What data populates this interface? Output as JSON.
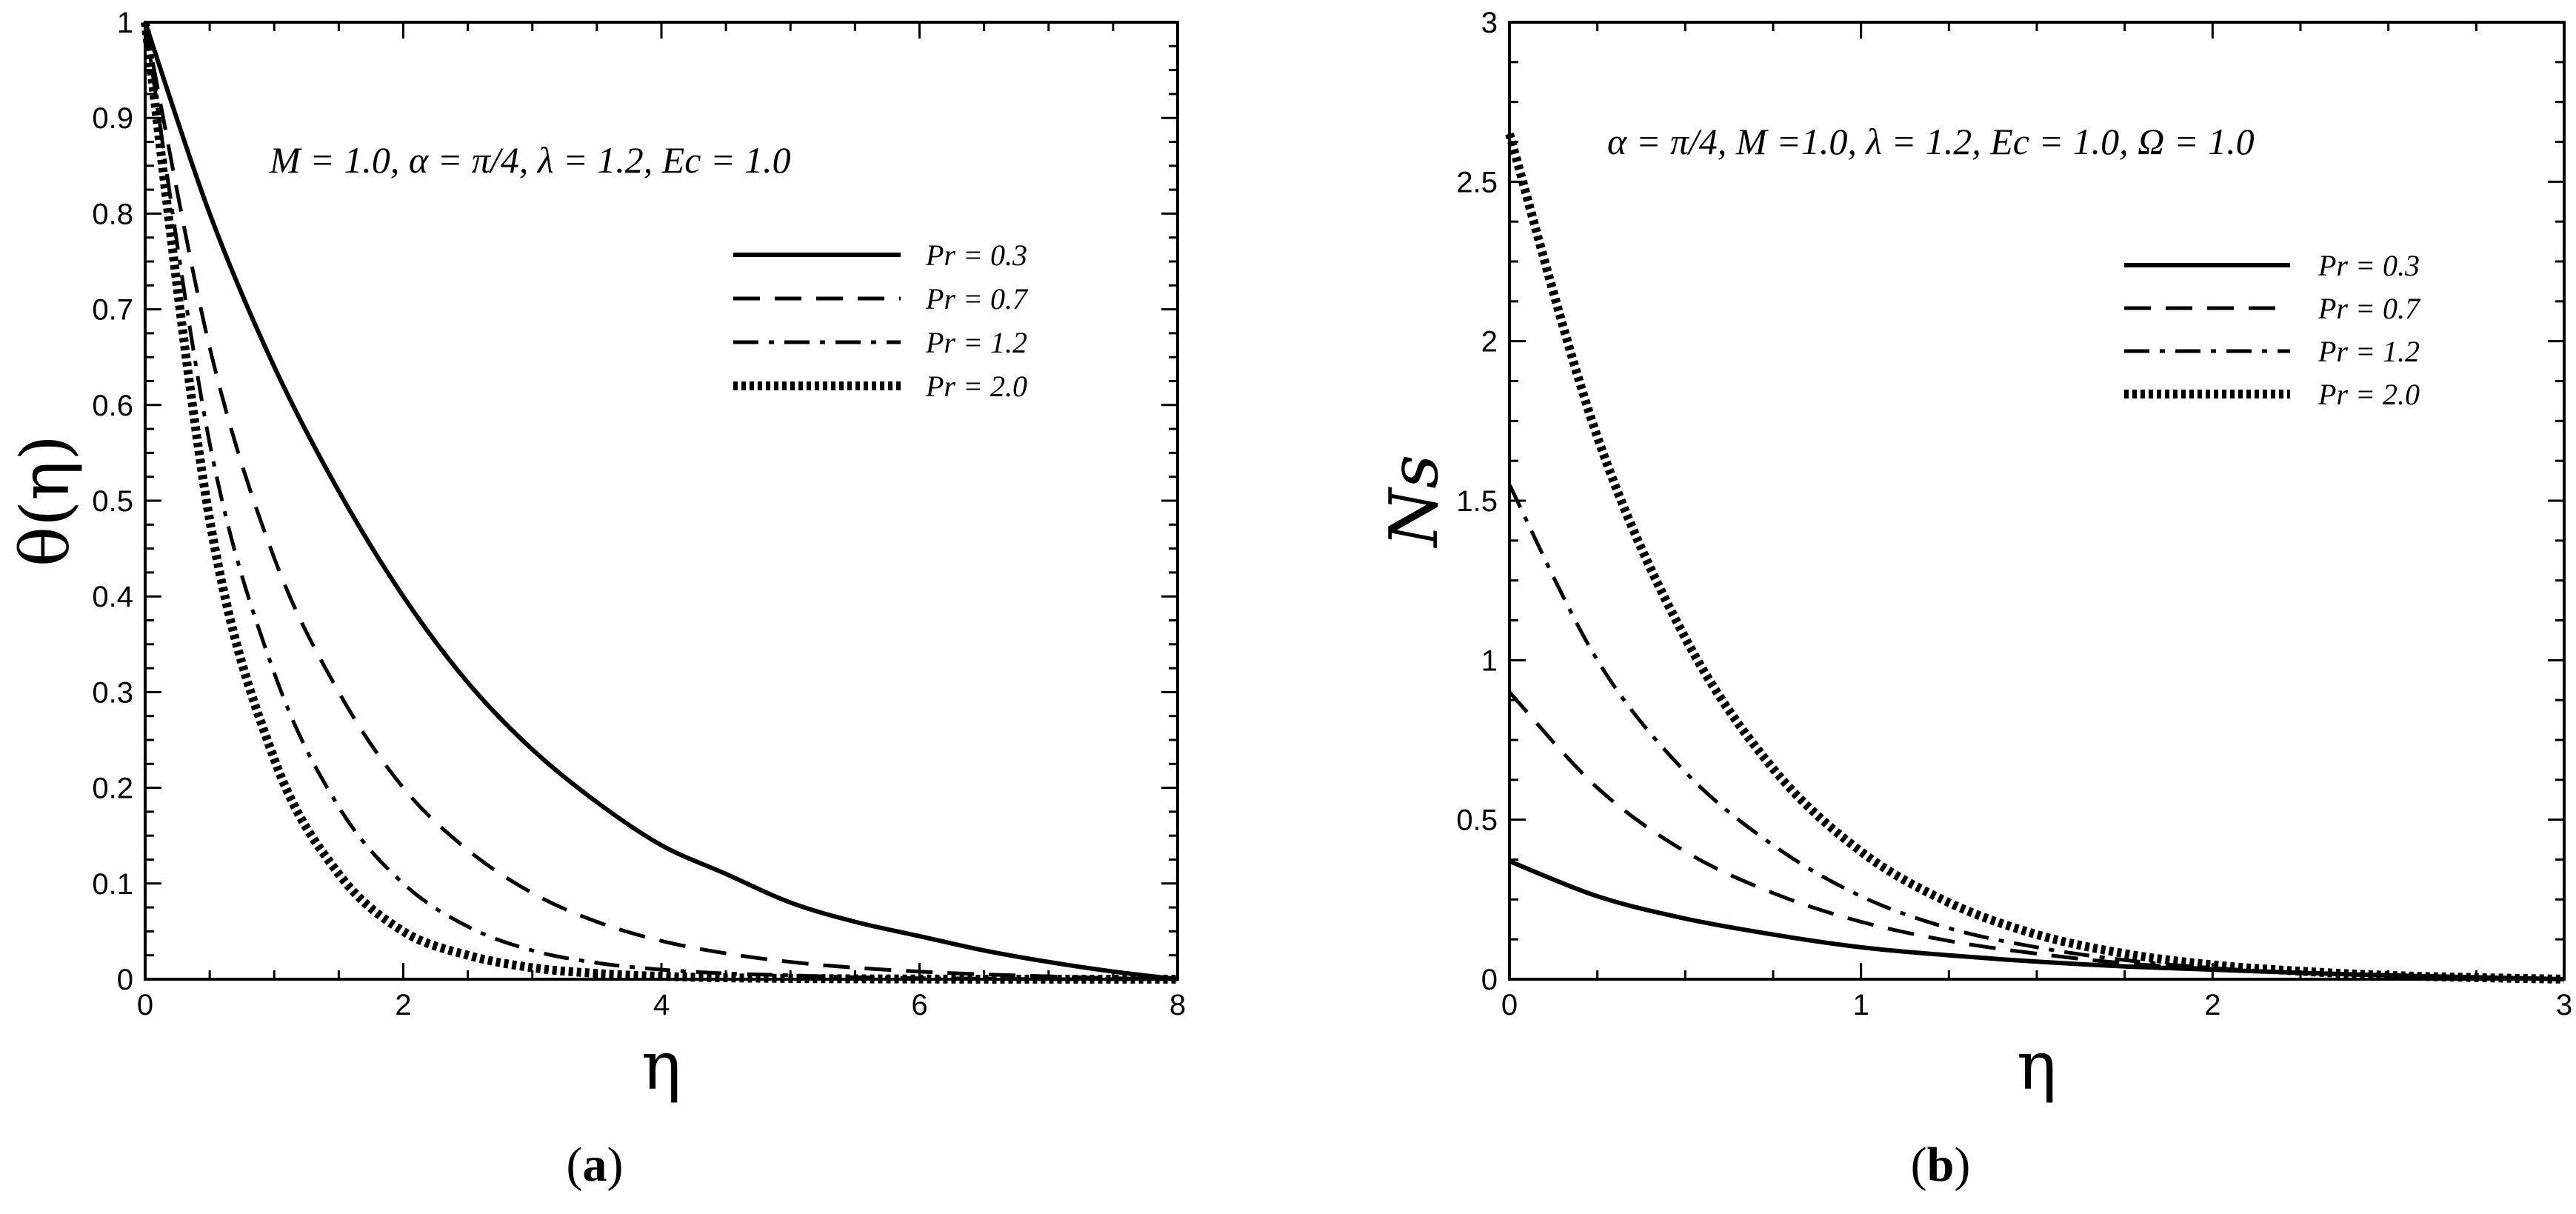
{
  "chart_data": [
    {
      "type": "line",
      "panel": "a",
      "caption": {
        "open": "(",
        "letter": "a",
        "close": ")"
      },
      "ylabel": "θ(η)",
      "xlabel": "η",
      "annotation": "M = 1.0, α = π/4, λ = 1.2, Ec = 1.0",
      "xlim": [
        0,
        8
      ],
      "ylim": [
        0,
        1
      ],
      "xticks": [
        0,
        2,
        4,
        6,
        8
      ],
      "yticks": [
        0,
        0.1,
        0.2,
        0.3,
        0.4,
        0.5,
        0.6,
        0.7,
        0.8,
        0.9,
        1
      ],
      "legend_position": "upper-right",
      "series": [
        {
          "name": "Pr = 0.3",
          "style": "solid",
          "x": [
            0,
            0.5,
            1,
            1.5,
            2,
            2.5,
            3,
            3.5,
            4,
            4.5,
            5,
            5.5,
            6,
            6.5,
            7,
            7.5,
            8
          ],
          "y": [
            1.0,
            0.8,
            0.64,
            0.51,
            0.4,
            0.31,
            0.24,
            0.185,
            0.14,
            0.11,
            0.08,
            0.06,
            0.045,
            0.03,
            0.018,
            0.008,
            0.0
          ]
        },
        {
          "name": "Pr = 0.7",
          "style": "dashed",
          "x": [
            0,
            0.5,
            1,
            1.5,
            2,
            2.5,
            3,
            3.5,
            4,
            4.5,
            5,
            5.5,
            6,
            6.5,
            7,
            7.5,
            8
          ],
          "y": [
            1.0,
            0.66,
            0.44,
            0.3,
            0.2,
            0.135,
            0.09,
            0.06,
            0.04,
            0.027,
            0.018,
            0.012,
            0.008,
            0.005,
            0.003,
            0.001,
            0.0
          ]
        },
        {
          "name": "Pr = 1.2",
          "style": "dashdot",
          "x": [
            0,
            0.5,
            1,
            1.5,
            2,
            2.5,
            3,
            3.5,
            4,
            4.5,
            5,
            5.5,
            6,
            6.5,
            7,
            7.5,
            8
          ],
          "y": [
            1.0,
            0.56,
            0.32,
            0.18,
            0.1,
            0.055,
            0.03,
            0.017,
            0.01,
            0.006,
            0.004,
            0.002,
            0.001,
            0.0005,
            0.0,
            0.0,
            0.0
          ]
        },
        {
          "name": "Pr = 2.0",
          "style": "dotted",
          "x": [
            0,
            0.5,
            1,
            1.5,
            2,
            2.5,
            3,
            3.5,
            4,
            4.5,
            5,
            5.5,
            6,
            6.5,
            7,
            7.5,
            8
          ],
          "y": [
            1.0,
            0.48,
            0.23,
            0.11,
            0.05,
            0.025,
            0.012,
            0.006,
            0.003,
            0.0015,
            0.0008,
            0.0004,
            0.0002,
            0.0,
            0.0,
            0.0,
            0.0
          ]
        }
      ]
    },
    {
      "type": "line",
      "panel": "b",
      "caption": {
        "open": "(",
        "letter": "b",
        "close": ")"
      },
      "ylabel": "Ns",
      "xlabel": "η",
      "annotation": "α = π/4, M =1.0, λ = 1.2, Ec = 1.0, Ω = 1.0",
      "xlim": [
        0,
        3
      ],
      "ylim": [
        0,
        3
      ],
      "xticks": [
        0,
        1,
        2,
        3
      ],
      "yticks": [
        0,
        0.5,
        1,
        1.5,
        2,
        2.5,
        3
      ],
      "legend_position": "upper-right",
      "series": [
        {
          "name": "Pr = 0.3",
          "style": "solid",
          "x": [
            0,
            0.25,
            0.5,
            0.75,
            1,
            1.25,
            1.5,
            1.75,
            2,
            2.25,
            2.5,
            2.75,
            3
          ],
          "y": [
            0.37,
            0.26,
            0.19,
            0.14,
            0.1,
            0.075,
            0.055,
            0.04,
            0.03,
            0.02,
            0.012,
            0.006,
            0.0
          ]
        },
        {
          "name": "Pr = 0.7",
          "style": "dashed",
          "x": [
            0,
            0.25,
            0.5,
            0.75,
            1,
            1.25,
            1.5,
            1.75,
            2,
            2.25,
            2.5,
            2.75,
            3
          ],
          "y": [
            0.9,
            0.6,
            0.4,
            0.27,
            0.18,
            0.12,
            0.08,
            0.05,
            0.032,
            0.02,
            0.012,
            0.006,
            0.0
          ]
        },
        {
          "name": "Pr = 1.2",
          "style": "dashdot",
          "x": [
            0,
            0.25,
            0.5,
            0.75,
            1,
            1.25,
            1.5,
            1.75,
            2,
            2.25,
            2.5,
            2.75,
            3
          ],
          "y": [
            1.55,
            1.0,
            0.65,
            0.42,
            0.26,
            0.16,
            0.1,
            0.06,
            0.035,
            0.02,
            0.011,
            0.005,
            0.0
          ]
        },
        {
          "name": "Pr = 2.0",
          "style": "dotted",
          "x": [
            0,
            0.25,
            0.5,
            0.75,
            1,
            1.25,
            1.5,
            1.75,
            2,
            2.25,
            2.5,
            2.75,
            3
          ],
          "y": [
            2.65,
            1.7,
            1.07,
            0.66,
            0.4,
            0.24,
            0.14,
            0.08,
            0.045,
            0.025,
            0.012,
            0.005,
            0.0
          ]
        }
      ]
    }
  ]
}
